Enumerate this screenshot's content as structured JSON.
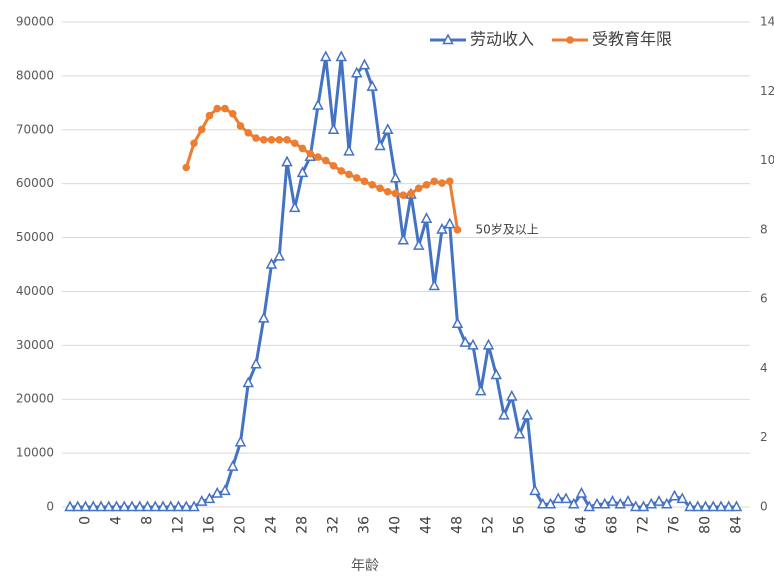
{
  "chart_data": {
    "type": "line",
    "x_label": "年龄",
    "annotation": "50岁及以上",
    "categories": [
      null,
      null,
      "0",
      null,
      null,
      null,
      "4",
      null,
      null,
      null,
      "8",
      null,
      null,
      null,
      "12",
      null,
      null,
      null,
      "16",
      null,
      null,
      null,
      "20",
      null,
      null,
      null,
      "24",
      null,
      null,
      null,
      "28",
      null,
      null,
      null,
      "32",
      null,
      null,
      null,
      "36",
      null,
      null,
      null,
      "40",
      null,
      null,
      null,
      "44",
      null,
      null,
      null,
      "48",
      null,
      null,
      null,
      "52",
      null,
      null,
      null,
      "56",
      null,
      null,
      null,
      "60",
      null,
      null,
      null,
      "64",
      null,
      null,
      null,
      "68",
      null,
      null,
      null,
      "72",
      null,
      null,
      null,
      "76",
      null,
      null,
      null,
      "80",
      null,
      null,
      null,
      "84"
    ],
    "series": [
      {
        "name": "劳动收入",
        "color": "#4472c4",
        "marker": "triangle",
        "values": [
          0,
          0,
          0,
          0,
          0,
          0,
          0,
          0,
          0,
          0,
          0,
          0,
          0,
          0,
          0,
          0,
          0,
          1000,
          1500,
          2500,
          3000,
          7500,
          12000,
          23000,
          26500,
          35000,
          45000,
          46500,
          64000,
          55500,
          62000,
          65000,
          74500,
          83500,
          70000,
          83500,
          66000,
          80500,
          82000,
          78000,
          67000,
          70000,
          61000,
          49500,
          58000,
          48500,
          53500,
          41000,
          51500,
          52500,
          34000,
          30500,
          30000,
          21500,
          30000,
          24500,
          17000,
          20500,
          13500,
          17000,
          3000,
          500,
          500,
          1500,
          1500,
          500,
          2500,
          0,
          500,
          500,
          1000,
          500,
          1000,
          0,
          0,
          500,
          1000,
          500,
          2000,
          1500,
          0,
          0,
          0,
          0,
          0,
          0,
          0
        ]
      },
      {
        "name": "受教育年限",
        "color": "#ed7d31",
        "marker": "circle",
        "axis": "y2",
        "values": [
          null,
          null,
          null,
          null,
          null,
          null,
          null,
          null,
          null,
          null,
          null,
          null,
          null,
          null,
          null,
          9.8,
          10.5,
          10.9,
          11.3,
          11.5,
          11.5,
          11.35,
          11.0,
          10.8,
          10.65,
          10.6,
          10.6,
          10.6,
          10.6,
          10.5,
          10.35,
          10.2,
          10.1,
          10.0,
          9.85,
          9.7,
          9.6,
          9.5,
          9.4,
          9.3,
          9.2,
          9.1,
          9.05,
          9.0,
          9.05,
          9.2,
          9.3,
          9.4,
          9.35,
          9.4,
          8.0,
          null,
          null,
          null,
          null,
          null,
          null,
          null,
          null,
          null,
          null,
          null,
          null,
          null,
          null,
          null,
          null,
          null,
          null,
          null,
          null,
          null,
          null,
          null,
          null,
          null,
          null,
          null,
          null,
          null,
          null,
          null,
          null,
          null,
          null,
          null,
          null
        ]
      }
    ],
    "ylim": [
      0,
      90000
    ],
    "yticks": [
      0,
      10000,
      20000,
      30000,
      40000,
      50000,
      60000,
      70000,
      80000,
      90000
    ],
    "y2lim": [
      0,
      14
    ],
    "y2ticks": [
      0,
      2,
      4,
      6,
      8,
      10,
      12,
      14
    ],
    "grid": true,
    "legend": "top-right"
  }
}
